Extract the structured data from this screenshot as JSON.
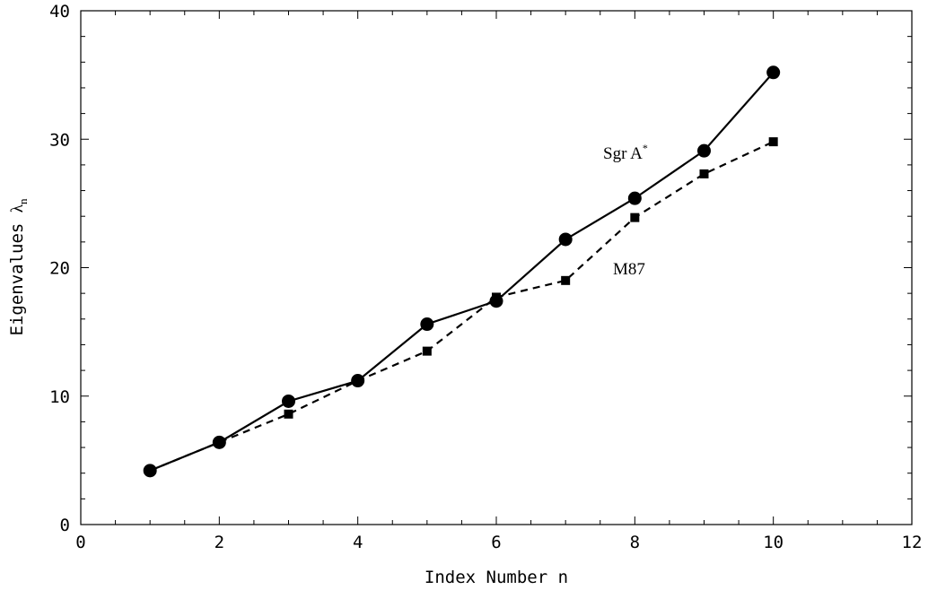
{
  "chart_data": {
    "type": "line",
    "xlabel": "Index Number n",
    "ylabel_text": "Eigenvalues ",
    "ylabel_symbol": "λ",
    "ylabel_subscript": "n",
    "xlim": [
      0,
      12
    ],
    "ylim": [
      0,
      40
    ],
    "x_ticks": [
      0,
      2,
      4,
      6,
      8,
      10,
      12
    ],
    "y_ticks": [
      0,
      10,
      20,
      30,
      40
    ],
    "x_ticks_labels": [
      "0",
      "2",
      "4",
      "6",
      "8",
      "10",
      "12"
    ],
    "y_ticks_labels": [
      "0",
      "10",
      "20",
      "30",
      "40"
    ],
    "grid": false,
    "series": [
      {
        "name": "Sgr A",
        "name_superscript": "*",
        "marker": "circle",
        "line_style": "solid",
        "color": "#000000",
        "x": [
          1,
          2,
          3,
          4,
          5,
          6,
          7,
          8,
          9,
          10
        ],
        "values": [
          4.2,
          6.4,
          9.6,
          11.2,
          15.6,
          17.4,
          22.2,
          25.4,
          29.1,
          35.2
        ]
      },
      {
        "name": "M87",
        "marker": "square",
        "line_style": "dashed",
        "color": "#000000",
        "x": [
          1,
          2,
          3,
          4,
          5,
          6,
          7,
          8,
          9,
          10
        ],
        "values": [
          4.2,
          6.4,
          8.6,
          11.2,
          13.5,
          17.7,
          19.0,
          23.9,
          27.3,
          29.8
        ]
      }
    ]
  }
}
